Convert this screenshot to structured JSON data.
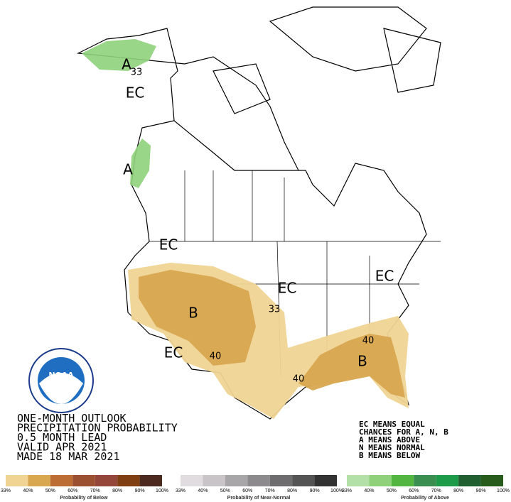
{
  "map_labels": [
    "A",
    "33",
    "EC",
    "A",
    "EC",
    "B",
    "33",
    "EC",
    "EC",
    "40",
    "EC",
    "40",
    "B",
    "40"
  ],
  "outlook": {
    "lines": [
      "ONE-MONTH OUTLOOK",
      "PRECIPITATION PROBABILITY",
      "0.5 MONTH LEAD",
      "VALID APR 2021",
      "MADE 18 MAR 2021"
    ]
  },
  "key": {
    "lines": [
      "EC MEANS EQUAL",
      "CHANCES FOR A, N, B",
      "A MEANS ABOVE",
      "N MEANS NORMAL",
      "B MEANS BELOW"
    ]
  },
  "logo": {
    "text": "NOAA"
  },
  "legend": {
    "groups": [
      {
        "title": "Probability of Below",
        "colors": [
          "#f0d493",
          "#d8a750",
          "#bb6d33",
          "#9b5031",
          "#934639",
          "#7f3f12",
          "#4d2a20"
        ],
        "ticks": [
          "33%",
          "40%",
          "50%",
          "60%",
          "70%",
          "80%",
          "90%",
          "100%"
        ]
      },
      {
        "title": "Probability of Near-Normal",
        "colors": [
          "#e0dce0",
          "#c8c4c8",
          "#a8a6a8",
          "#8c8a8c",
          "#6e6c6e",
          "#545454",
          "#333333"
        ],
        "ticks": [
          "33%",
          "40%",
          "50%",
          "60%",
          "70%",
          "80%",
          "90%",
          "100%"
        ]
      },
      {
        "title": "Probability of Above",
        "colors": [
          "#b3e0a6",
          "#8fd17a",
          "#52b540",
          "#3a8f50",
          "#1e9b48",
          "#206030",
          "#285c1c"
        ],
        "ticks": [
          "33%",
          "40%",
          "50%",
          "60%",
          "70%",
          "80%",
          "90%",
          "100%"
        ]
      }
    ]
  }
}
